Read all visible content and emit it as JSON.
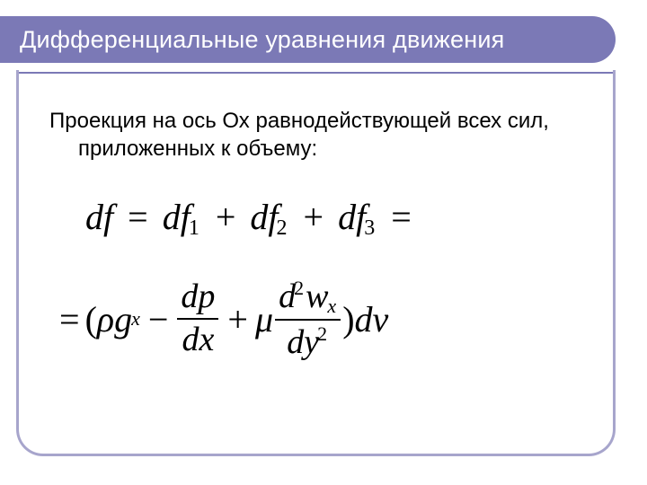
{
  "colors": {
    "title_bg": "#7b79b6",
    "accent": "#a7a5cc",
    "text": "#000000",
    "title_text": "#ffffff"
  },
  "title": "Дифференциальные уравнения движения",
  "body": "Проекция на ось Ох равнодействующей всех сил, приложенных к объему:",
  "formula": {
    "line1": {
      "lhs": "df",
      "t1": "df",
      "s1": "1",
      "t2": "df",
      "s2": "2",
      "t3": "df",
      "s3": "3"
    },
    "line2": {
      "rho": "ρ",
      "g": "g",
      "gsub": "x",
      "dp": "dp",
      "dx": "dx",
      "mu": "μ",
      "d2w_num_d": "d",
      "d2w_num_exp": "2",
      "d2w_num_w": "w",
      "d2w_num_sub": "x",
      "d2w_den_dy": "dy",
      "d2w_den_exp": "2",
      "dv": "dv"
    }
  },
  "typography": {
    "title_fontsize": 27,
    "body_fontsize": 24,
    "formula_fontsize": 40,
    "formula_font": "Times New Roman"
  }
}
